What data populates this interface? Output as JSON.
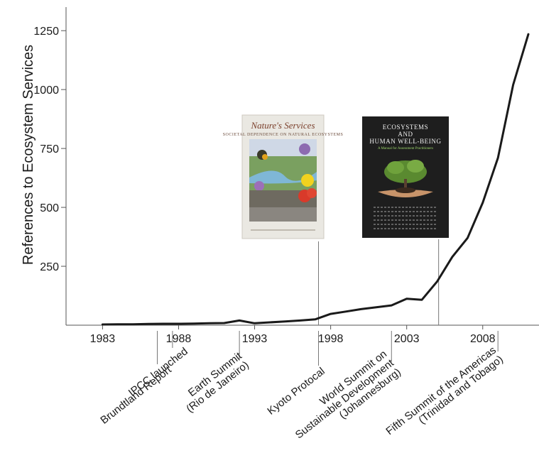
{
  "chart_data": {
    "type": "line",
    "ylabel": "References to Ecosystem Services",
    "xlabel": "",
    "xlim": [
      1980.6,
      2011.7
    ],
    "ylim": [
      0,
      1350
    ],
    "x_ticks": [
      1983,
      1988,
      1993,
      1998,
      2003,
      2008
    ],
    "y_ticks": [
      250,
      500,
      750,
      1000,
      1250
    ],
    "series": [
      {
        "color": "#1a1a1a",
        "x": [
          1983,
          1984,
          1985,
          1986,
          1987,
          1988,
          1989,
          1990,
          1991,
          1992,
          1993,
          1994,
          1995,
          1996,
          1997,
          1998,
          1999,
          2000,
          2001,
          2002,
          2003,
          2004,
          2005,
          2006,
          2007,
          2008,
          2009,
          2010,
          2011
        ],
        "y": [
          3,
          4,
          4,
          5,
          6,
          6,
          7,
          8,
          9,
          20,
          8,
          12,
          16,
          20,
          25,
          48,
          58,
          68,
          76,
          84,
          112,
          108,
          185,
          290,
          370,
          520,
          710,
          1020,
          1235
        ]
      }
    ],
    "events": [
      {
        "year": 1986.6,
        "label_lines": [
          "Brundtland Report"
        ]
      },
      {
        "year": 1987.6,
        "label_lines": [
          "IPCC launched"
        ]
      },
      {
        "year": 1992.0,
        "label_lines": [
          "Earth Summit",
          "(Rio de Janeiro)"
        ]
      },
      {
        "year": 1997.2,
        "label_lines": [
          "Kyoto Protocal"
        ]
      },
      {
        "year": 2002.0,
        "label_lines": [
          "World Summit on",
          "Sustainable Development",
          "(Johannesburg)"
        ]
      },
      {
        "year": 2009.0,
        "label_lines": [
          "Fifth Summit of the Americas",
          "(Trinidad and Tobago)"
        ]
      }
    ],
    "books": [
      {
        "year": 1997.2,
        "title": "Nature's Services",
        "subtitle": "SOCIETAL DEPENDENCE ON NATURAL ECOSYSTEMS",
        "colors": {
          "sky": "#cfd8e6",
          "land": "#7aa060",
          "water": "#7fb7d6"
        }
      },
      {
        "year": 2005.1,
        "title_lines": [
          "ECOSYSTEMS",
          "AND",
          "HUMAN WELL-BEING"
        ],
        "subtitle": "A Manual for Assessment Practitioners",
        "colors": {
          "cover": "#1e1e1e",
          "tree": "#5a8a30",
          "hands": "#c8946a"
        }
      }
    ]
  }
}
